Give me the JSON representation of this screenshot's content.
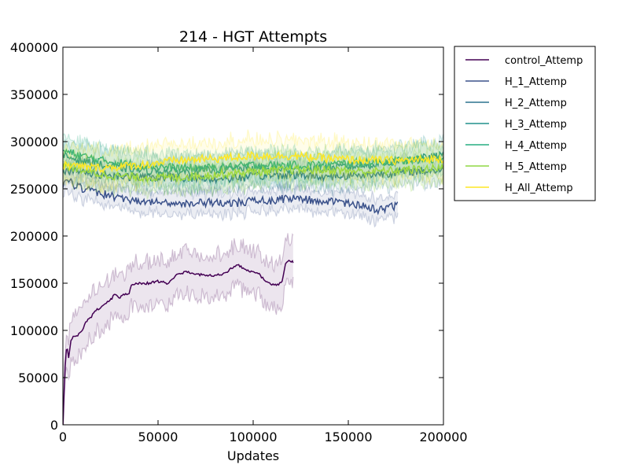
{
  "chart_data": {
    "type": "line",
    "title": "214 - HGT Attempts",
    "xlabel": "Updates",
    "ylabel": "",
    "xlim": [
      0,
      200000
    ],
    "ylim": [
      0,
      400000
    ],
    "x_ticks": [
      0,
      50000,
      100000,
      150000,
      200000
    ],
    "y_ticks": [
      0,
      50000,
      100000,
      150000,
      200000,
      250000,
      300000,
      350000,
      400000
    ],
    "grid": false,
    "legend_position": "outside-right",
    "series": [
      {
        "name": "control_Attemp",
        "color": "#440154",
        "x_end": 121000,
        "ci_width": 45000,
        "points": [
          [
            0,
            0
          ],
          [
            1000,
            55000
          ],
          [
            2000,
            85000
          ],
          [
            3000,
            70000
          ],
          [
            4000,
            88000
          ],
          [
            6000,
            95000
          ],
          [
            8000,
            95000
          ],
          [
            10000,
            100000
          ],
          [
            13000,
            112000
          ],
          [
            15000,
            115000
          ],
          [
            18000,
            122000
          ],
          [
            20000,
            125000
          ],
          [
            23000,
            130000
          ],
          [
            25000,
            132000
          ],
          [
            27000,
            138000
          ],
          [
            30000,
            135000
          ],
          [
            32000,
            138000
          ],
          [
            35000,
            140000
          ],
          [
            36000,
            148000
          ],
          [
            40000,
            150000
          ],
          [
            45000,
            150000
          ],
          [
            50000,
            152000
          ],
          [
            55000,
            150000
          ],
          [
            58000,
            155000
          ],
          [
            60000,
            160000
          ],
          [
            65000,
            162000
          ],
          [
            70000,
            160000
          ],
          [
            75000,
            158000
          ],
          [
            80000,
            158000
          ],
          [
            85000,
            160000
          ],
          [
            88000,
            165000
          ],
          [
            92000,
            170000
          ],
          [
            95000,
            165000
          ],
          [
            100000,
            162000
          ],
          [
            103000,
            160000
          ],
          [
            105000,
            155000
          ],
          [
            110000,
            148000
          ],
          [
            115000,
            150000
          ],
          [
            117000,
            170000
          ],
          [
            119000,
            175000
          ],
          [
            121000,
            172000
          ]
        ]
      },
      {
        "name": "H_1_Attemp",
        "color": "#3b528b",
        "x_end": 176000,
        "ci_width": 22000,
        "points": [
          [
            0,
            250000
          ],
          [
            2000,
            262000
          ],
          [
            5000,
            255000
          ],
          [
            10000,
            250000
          ],
          [
            20000,
            245000
          ],
          [
            30000,
            240000
          ],
          [
            40000,
            237000
          ],
          [
            50000,
            235000
          ],
          [
            60000,
            235000
          ],
          [
            70000,
            235000
          ],
          [
            80000,
            236000
          ],
          [
            90000,
            235000
          ],
          [
            100000,
            237000
          ],
          [
            110000,
            238000
          ],
          [
            120000,
            240000
          ],
          [
            130000,
            238000
          ],
          [
            140000,
            237000
          ],
          [
            150000,
            235000
          ],
          [
            160000,
            230000
          ],
          [
            165000,
            228000
          ],
          [
            170000,
            230000
          ],
          [
            176000,
            232000
          ]
        ]
      },
      {
        "name": "H_2_Attemp",
        "color": "#2c728e",
        "x_end": 200000,
        "ci_width": 25000,
        "points": [
          [
            0,
            270000
          ],
          [
            20000,
            265000
          ],
          [
            40000,
            262000
          ],
          [
            60000,
            262000
          ],
          [
            80000,
            260000
          ],
          [
            100000,
            263000
          ],
          [
            120000,
            265000
          ],
          [
            140000,
            263000
          ],
          [
            160000,
            265000
          ],
          [
            180000,
            268000
          ],
          [
            200000,
            270000
          ]
        ]
      },
      {
        "name": "H_3_Attemp",
        "color": "#21918c",
        "x_end": 200000,
        "ci_width": 30000,
        "points": [
          [
            0,
            285000
          ],
          [
            20000,
            275000
          ],
          [
            40000,
            270000
          ],
          [
            60000,
            268000
          ],
          [
            80000,
            270000
          ],
          [
            100000,
            272000
          ],
          [
            120000,
            270000
          ],
          [
            140000,
            272000
          ],
          [
            160000,
            275000
          ],
          [
            180000,
            280000
          ],
          [
            200000,
            285000
          ]
        ]
      },
      {
        "name": "H_4_Attemp",
        "color": "#27ad81",
        "x_end": 200000,
        "ci_width": 28000,
        "points": [
          [
            0,
            290000
          ],
          [
            20000,
            280000
          ],
          [
            40000,
            275000
          ],
          [
            60000,
            272000
          ],
          [
            80000,
            272000
          ],
          [
            100000,
            275000
          ],
          [
            120000,
            275000
          ],
          [
            140000,
            276000
          ],
          [
            160000,
            278000
          ],
          [
            180000,
            280000
          ],
          [
            200000,
            282000
          ]
        ]
      },
      {
        "name": "H_5_Attemp",
        "color": "#8fd744",
        "x_end": 200000,
        "ci_width": 28000,
        "points": [
          [
            0,
            275000
          ],
          [
            20000,
            265000
          ],
          [
            40000,
            262000
          ],
          [
            60000,
            262000
          ],
          [
            80000,
            265000
          ],
          [
            100000,
            268000
          ],
          [
            120000,
            270000
          ],
          [
            140000,
            270000
          ],
          [
            160000,
            268000
          ],
          [
            180000,
            270000
          ],
          [
            200000,
            272000
          ]
        ]
      },
      {
        "name": "H_All_Attemp",
        "color": "#fde725",
        "x_end": 200000,
        "ci_width": 35000,
        "points": [
          [
            0,
            275000
          ],
          [
            20000,
            272000
          ],
          [
            40000,
            275000
          ],
          [
            60000,
            280000
          ],
          [
            80000,
            282000
          ],
          [
            100000,
            285000
          ],
          [
            120000,
            285000
          ],
          [
            140000,
            282000
          ],
          [
            160000,
            280000
          ],
          [
            180000,
            280000
          ],
          [
            200000,
            282000
          ]
        ]
      }
    ]
  }
}
